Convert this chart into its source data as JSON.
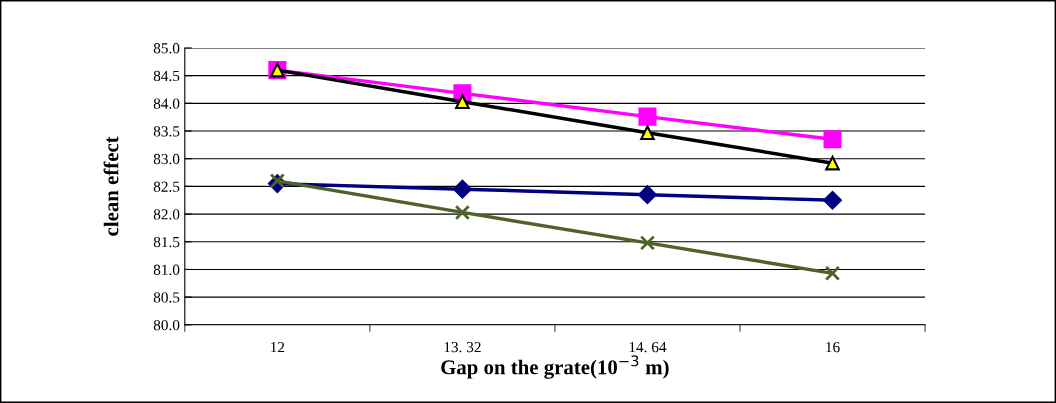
{
  "chart_data": {
    "type": "line",
    "xlabel": "Gap on the grate(10$^{−3}$ m)",
    "ylabel": "clean effect",
    "categories": [
      "12",
      "13. 32",
      "14. 64",
      "16"
    ],
    "series": [
      {
        "color": "#000080",
        "marker": "diamond",
        "values": [
          82.55,
          82.45,
          82.35,
          82.25
        ]
      },
      {
        "color": "#ff00ff",
        "marker": "square",
        "values": [
          84.6,
          84.18,
          83.76,
          83.35
        ]
      },
      {
        "color": "#000000",
        "marker": "triangle",
        "values": [
          84.6,
          84.03,
          83.47,
          82.92
        ]
      },
      {
        "color": "#4f6228",
        "marker": "cross",
        "values": [
          82.6,
          82.03,
          81.48,
          80.93
        ]
      }
    ],
    "ylim": [
      80,
      85
    ],
    "yticks": [
      {
        "value": 80,
        "label": "80.0"
      },
      80.5,
      {
        "value": 81,
        "label": "81.0"
      },
      81.5,
      {
        "value": 82,
        "label": "82.0"
      },
      82.5,
      {
        "value": 83,
        "label": "83.0"
      },
      83.5,
      {
        "value": 84,
        "label": "84.0"
      },
      84.5,
      {
        "value": 85,
        "label": "85.0"
      }
    ],
    "grid": "y",
    "legend": false
  }
}
